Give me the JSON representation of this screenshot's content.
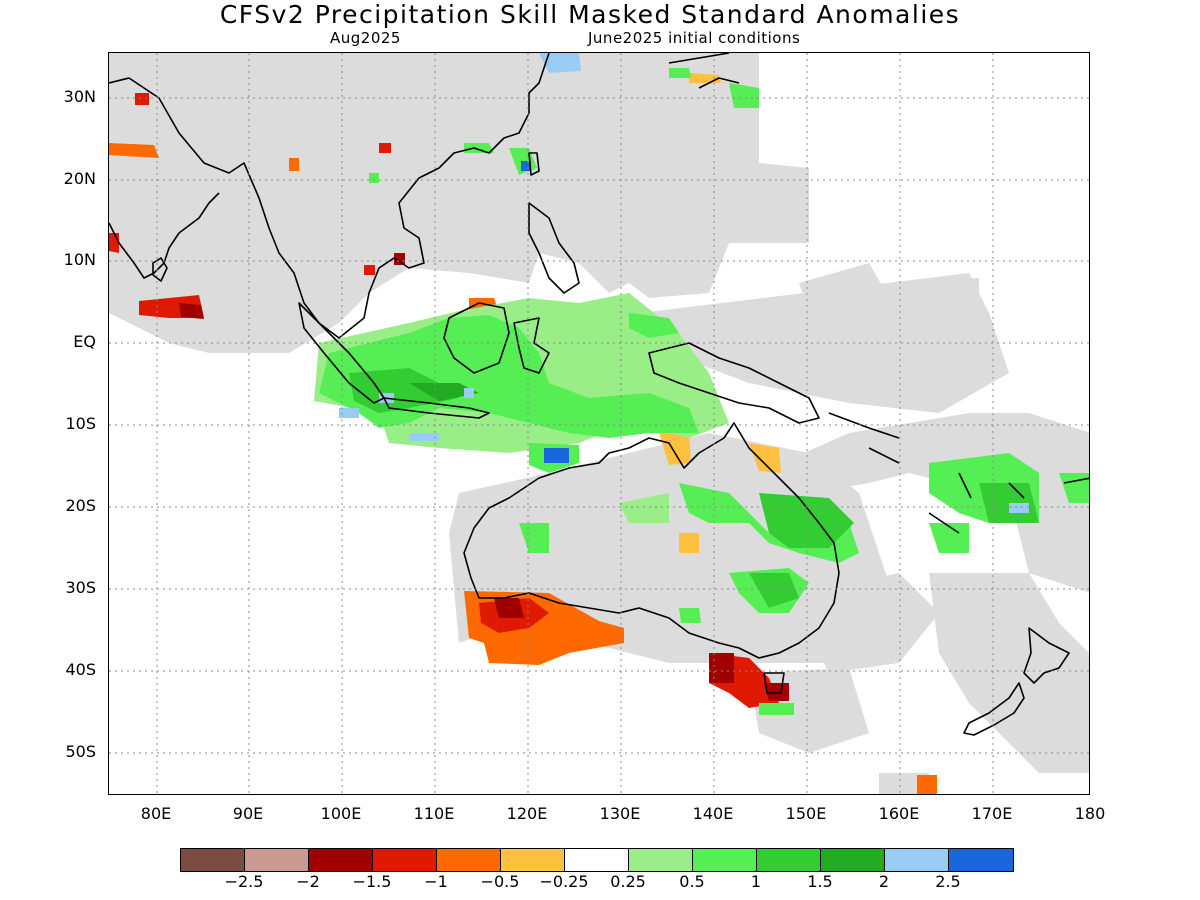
{
  "title": "CFSv2 Precipitation Skill Masked Standard Anomalies",
  "subtitle_left": "Aug2025",
  "subtitle_right": "June2025 initial conditions",
  "map": {
    "lat_labels": [
      "30N",
      "20N",
      "10N",
      "EQ",
      "10S",
      "20S",
      "30S",
      "40S",
      "50S"
    ],
    "lon_labels": [
      "80E",
      "90E",
      "100E",
      "110E",
      "120E",
      "130E",
      "140E",
      "150E",
      "160E",
      "170E",
      "180"
    ]
  },
  "legend": {
    "colors": [
      "#7a4c42",
      "#c99a8f",
      "#a00000",
      "#e01a00",
      "#ff6a00",
      "#ffc040",
      "#ffffff",
      "#99ee88",
      "#55ee55",
      "#33cc33",
      "#22aa22",
      "#99ccf5",
      "#1a66dd"
    ],
    "labels": [
      "−2.5",
      "−2",
      "−1.5",
      "−1",
      "−0.5",
      "−0.25",
      "0.25",
      "0.5",
      "1",
      "1.5",
      "2",
      "2.5"
    ]
  }
}
